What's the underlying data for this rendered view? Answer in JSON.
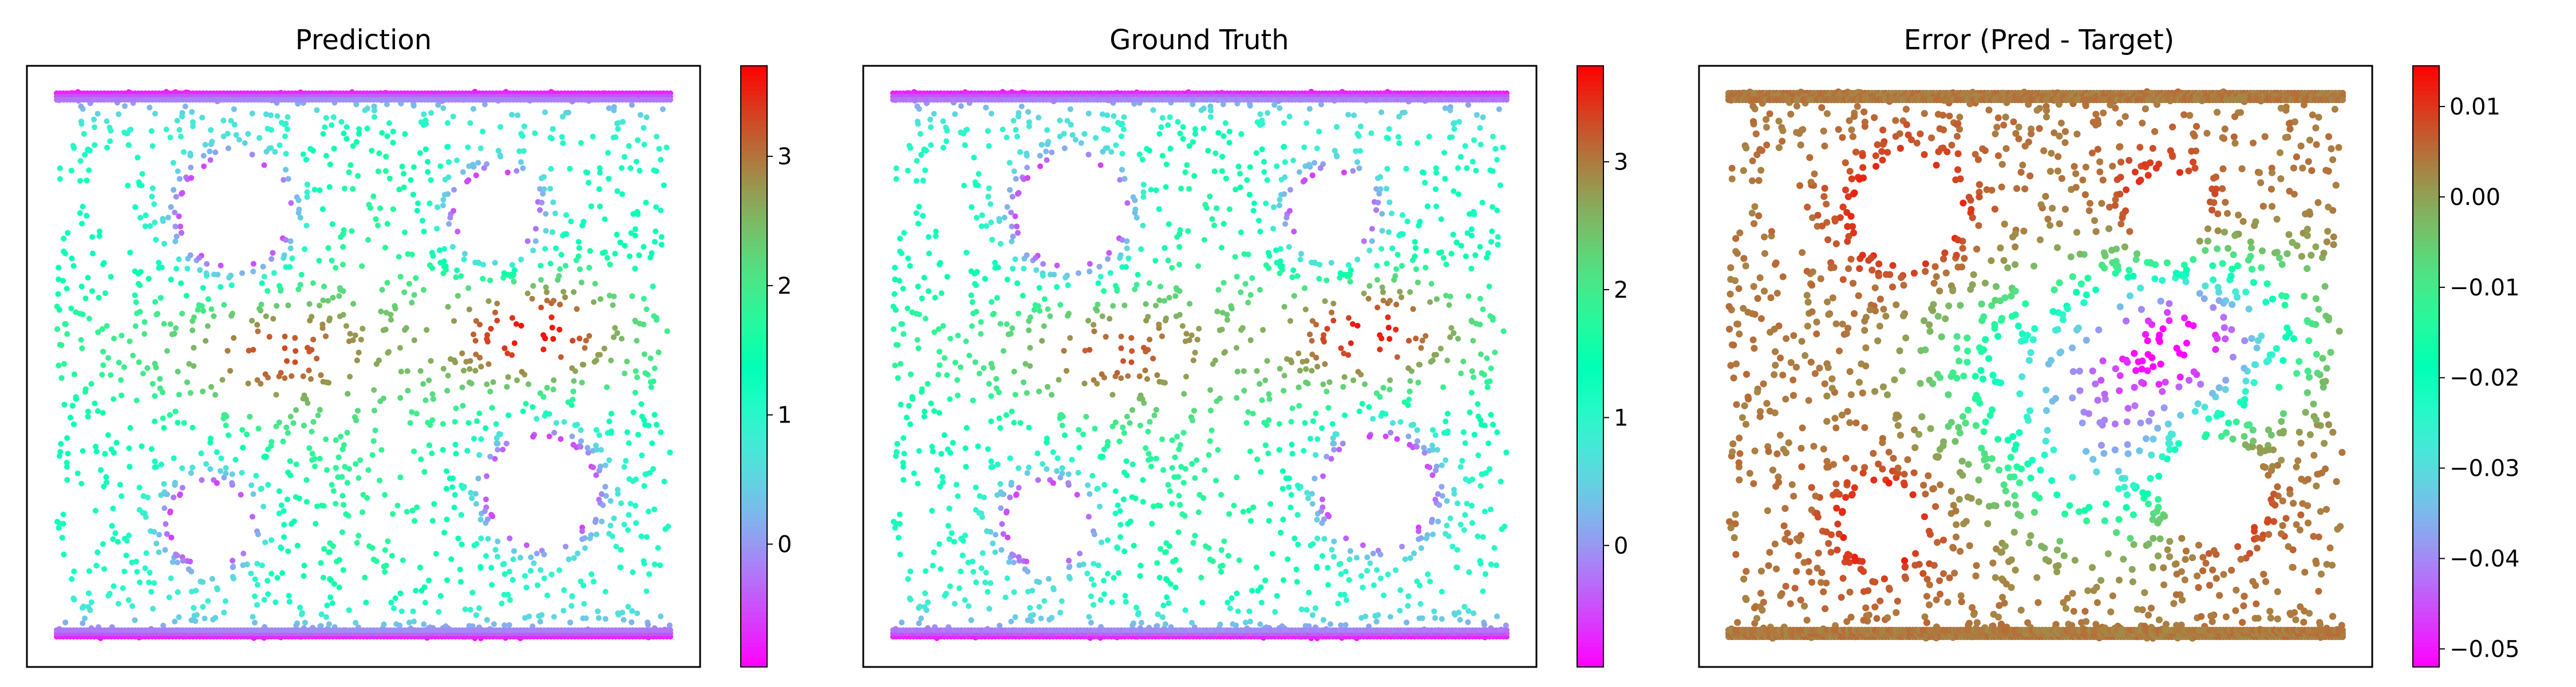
{
  "panels": [
    {
      "title": "Prediction",
      "colormap": "rainbow",
      "field": "magnitude",
      "vmin": -0.95,
      "vmax": 3.7,
      "colorbar_ticks": [
        "0",
        "1",
        "2",
        "3"
      ],
      "colorbar_tick_values": [
        0,
        1,
        2,
        3
      ]
    },
    {
      "title": "Ground Truth",
      "colormap": "rainbow",
      "field": "magnitude",
      "vmin": -0.95,
      "vmax": 3.75,
      "colorbar_ticks": [
        "0",
        "1",
        "2",
        "3"
      ],
      "colorbar_tick_values": [
        0,
        1,
        2,
        3
      ]
    },
    {
      "title": "Error (Pred - Target)",
      "colormap": "rainbow",
      "field": "error",
      "vmin": -0.052,
      "vmax": 0.0145,
      "colorbar_ticks": [
        "0.01",
        "0.00",
        "−0.01",
        "−0.02",
        "−0.03",
        "−0.04",
        "−0.05"
      ],
      "colorbar_tick_values": [
        0.01,
        0.0,
        -0.01,
        -0.02,
        -0.03,
        -0.04,
        -0.05
      ]
    }
  ],
  "chart_data": {
    "type": "scatter",
    "description_of_marks": "mesh node field values colored by rainbow colormap",
    "holes": [
      {
        "cx": 0.29,
        "cy": 0.78,
        "r": 0.095
      },
      {
        "cx": 0.715,
        "cy": 0.78,
        "r": 0.07
      },
      {
        "cx": 0.25,
        "cy": 0.21,
        "r": 0.07
      },
      {
        "cx": 0.79,
        "cy": 0.27,
        "r": 0.095
      }
    ],
    "hot_regions": [
      {
        "cx": 0.78,
        "cy": 0.57,
        "value": 3.5
      },
      {
        "cx": 0.35,
        "cy": 0.52,
        "value": 2.9
      }
    ],
    "error_regions": [
      {
        "cx": 0.75,
        "cy": 0.55,
        "value": -0.05
      },
      {
        "cx": 0.5,
        "cy": 0.5,
        "value": -0.02
      },
      {
        "cx": 0.63,
        "cy": 0.33,
        "value": -0.03
      }
    ]
  }
}
